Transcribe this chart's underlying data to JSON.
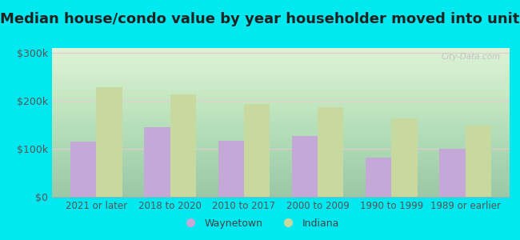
{
  "title": "Median house/condo value by year householder moved into unit",
  "categories": [
    "2021 or later",
    "2018 to 2020",
    "2010 to 2017",
    "2000 to 2009",
    "1990 to 1999",
    "1989 or earlier"
  ],
  "waynetown": [
    115000,
    145000,
    117000,
    127000,
    82000,
    100000
  ],
  "indiana": [
    228000,
    213000,
    193000,
    186000,
    163000,
    148000
  ],
  "waynetown_color": "#c4a8d8",
  "indiana_color": "#c8d9a0",
  "background_outer": "#00e8f0",
  "background_inner_top": "#f5faf5",
  "background_inner_bottom": "#d8eec8",
  "ylabel_ticks": [
    "$0",
    "$100k",
    "$200k",
    "$300k"
  ],
  "ytick_values": [
    0,
    100000,
    200000,
    300000
  ],
  "ylim": [
    0,
    310000
  ],
  "legend_waynetown": "Waynetown",
  "legend_indiana": "Indiana",
  "watermark": "City-Data.com",
  "title_fontsize": 13,
  "tick_fontsize": 8.5,
  "ytick_fontsize": 9
}
